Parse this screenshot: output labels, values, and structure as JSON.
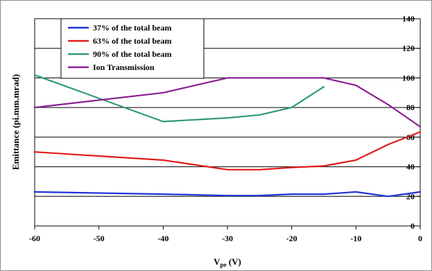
{
  "chart_data": {
    "type": "line",
    "xlabel_main": "V",
    "xlabel_sub": "pe",
    "xlabel_unit": " (V)",
    "ylabel": "Emittance (pi.mm.mrad)",
    "xlim": [
      -60,
      0
    ],
    "ylim": [
      0,
      140
    ],
    "xticks": [
      -60,
      -50,
      -40,
      -30,
      -20,
      -10,
      0
    ],
    "yticks": [
      0,
      20,
      40,
      60,
      80,
      100,
      120,
      140
    ],
    "y_grid_values": [
      20,
      40,
      60,
      80,
      100,
      120
    ],
    "grid": true,
    "legend_position": "top-left",
    "series": [
      {
        "name": "37% of the total beam",
        "color": "#1f35d6",
        "x": [
          -60,
          -40,
          -30,
          -25,
          -20,
          -15,
          -10,
          -5,
          0
        ],
        "y": [
          23,
          21.5,
          20.5,
          20.5,
          21.5,
          21.5,
          23,
          20,
          23
        ]
      },
      {
        "name": "63% of the total beam",
        "color": "#e01b1b",
        "x": [
          -60,
          -40,
          -30,
          -25,
          -20,
          -15,
          -10,
          -5,
          0
        ],
        "y": [
          50,
          44.5,
          38,
          38,
          39.5,
          40.5,
          44.5,
          55,
          63.5
        ]
      },
      {
        "name": "90% of the total beam",
        "color": "#2e9a72",
        "x": [
          -60,
          -40,
          -30,
          -25,
          -20,
          -15
        ],
        "y": [
          102,
          70.5,
          73,
          75,
          80,
          94
        ]
      },
      {
        "name": "Ion Transmission",
        "color": "#8a1e96",
        "x": [
          -60,
          -40,
          -30,
          -20,
          -15,
          -10,
          -5,
          0
        ],
        "y": [
          80,
          90,
          100,
          100,
          100,
          95,
          82,
          67
        ]
      }
    ]
  }
}
